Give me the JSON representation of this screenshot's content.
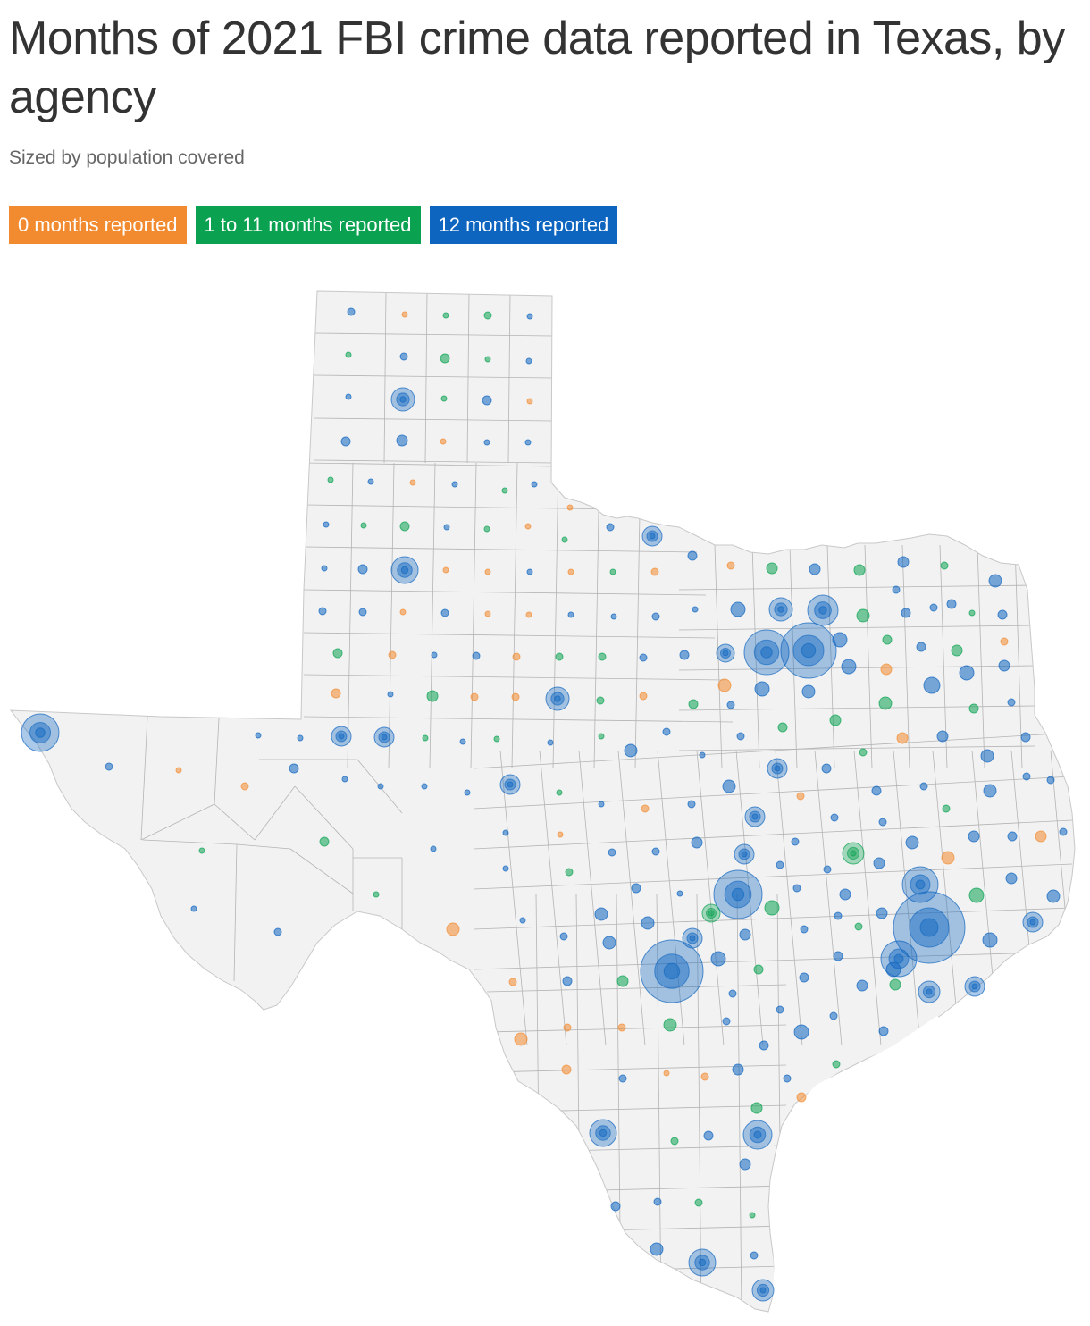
{
  "header": {
    "title": "Months of 2021 FBI crime data reported in Texas, by agency",
    "subtitle": "Sized by population covered"
  },
  "legend": [
    {
      "label": "0 months reported",
      "color": "#f28b30"
    },
    {
      "label": "1 to 11 months reported",
      "color": "#0aa251"
    },
    {
      "label": "12 months reported",
      "color": "#0e65c0"
    }
  ],
  "colors": {
    "state_fill": "#f2f2f2",
    "county_line": "#b4b4b4",
    "state_outline": "#c8c8c8"
  },
  "chart_data": {
    "type": "map",
    "region": "Texas",
    "encoding": "proportional circles per agency, sized by population covered, colored by months reported",
    "categories": [
      "0 months reported",
      "1 to 11 months reported",
      "12 months reported"
    ]
  }
}
